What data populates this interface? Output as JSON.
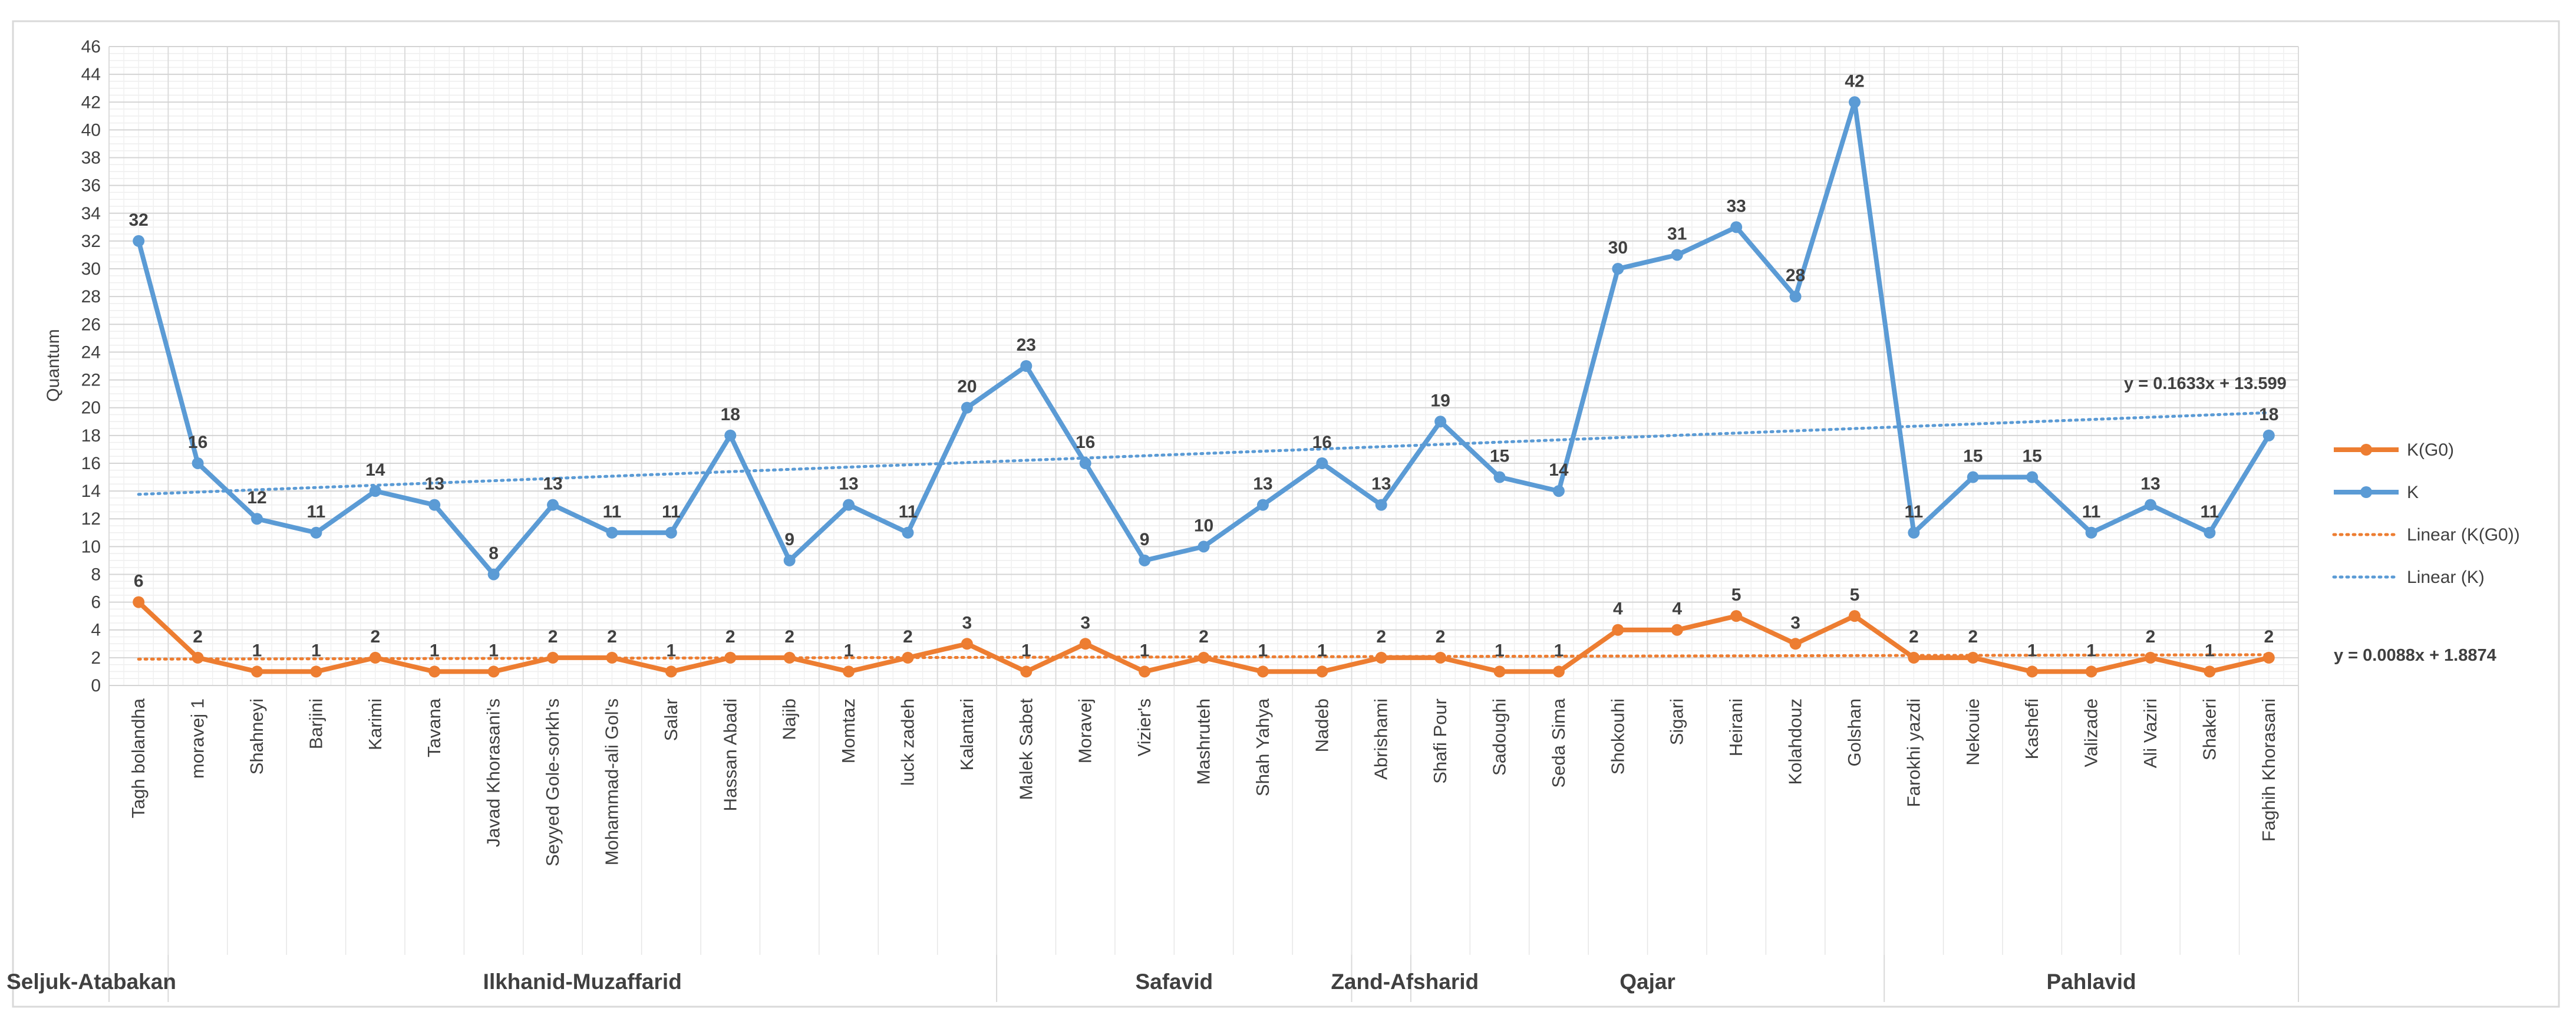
{
  "chart_data": {
    "type": "line",
    "ylabel": "Quantum",
    "ylim": [
      0,
      46
    ],
    "ytick_step": 2,
    "grid": true,
    "legend_position": "right",
    "categories": [
      "Tagh bolandha",
      "moravej 1",
      "Shahneyi",
      "Barjini",
      "Karimi",
      "Tavana",
      "Javad Khorasani's",
      "Seyyed Gole-sorkh's",
      "Mohammad-ali Gol's",
      "Salar",
      "Hassan Abadi",
      "Najib",
      "Momtaz",
      "luck zadeh",
      "Kalantari",
      "Malek Sabet",
      "Moravej",
      "Vizier's",
      "Mashruteh",
      "Shah Yahya",
      "Nadeb",
      "Abrishami",
      "Shafi Pour",
      "Sadoughi",
      "Seda Sima",
      "Shokouhi",
      "Sigari",
      "Heirani",
      "Kolahdouz",
      "Golshan",
      "Farokhi yazdi",
      "Nekouie",
      "Kashefi",
      "Valizade",
      "Ali Vaziri",
      "Shakeri",
      "Faghih Khorasani"
    ],
    "series": [
      {
        "name": "K(G0)",
        "color": "#ED7D31",
        "values": [
          6,
          2,
          1,
          1,
          2,
          1,
          1,
          2,
          2,
          1,
          2,
          2,
          1,
          2,
          3,
          1,
          3,
          1,
          2,
          1,
          1,
          2,
          2,
          1,
          1,
          4,
          4,
          5,
          3,
          5,
          2,
          2,
          1,
          1,
          2,
          1,
          2
        ]
      },
      {
        "name": "K",
        "color": "#5B9BD5",
        "values": [
          32,
          16,
          12,
          11,
          14,
          13,
          8,
          13,
          11,
          11,
          18,
          9,
          13,
          11,
          20,
          23,
          16,
          9,
          10,
          13,
          16,
          13,
          19,
          15,
          14,
          30,
          31,
          33,
          28,
          42,
          11,
          15,
          15,
          11,
          13,
          11,
          18
        ]
      }
    ],
    "trendlines": [
      {
        "name": "Linear (K(G0))",
        "series": "K(G0)",
        "slope": 0.0088,
        "intercept": 1.8874,
        "equation": "y = 0.0088x + 1.8874",
        "color": "#ED7D31"
      },
      {
        "name": "Linear (K)",
        "series": "K",
        "slope": 0.1633,
        "intercept": 13.599,
        "equation": "y = 0.1633x + 13.599",
        "color": "#5B9BD5"
      }
    ],
    "groups": [
      {
        "label": "Seljuk-Atabakan",
        "start": 0,
        "end": 0
      },
      {
        "label": "Ilkhanid-Muzaffarid",
        "start": 1,
        "end": 14
      },
      {
        "label": "Safavid",
        "start": 15,
        "end": 20
      },
      {
        "label": "Zand-Afsharid",
        "start": 21,
        "end": 21
      },
      {
        "label": "Qajar",
        "start": 22,
        "end": 29
      },
      {
        "label": "Pahlavid",
        "start": 30,
        "end": 36
      }
    ]
  }
}
